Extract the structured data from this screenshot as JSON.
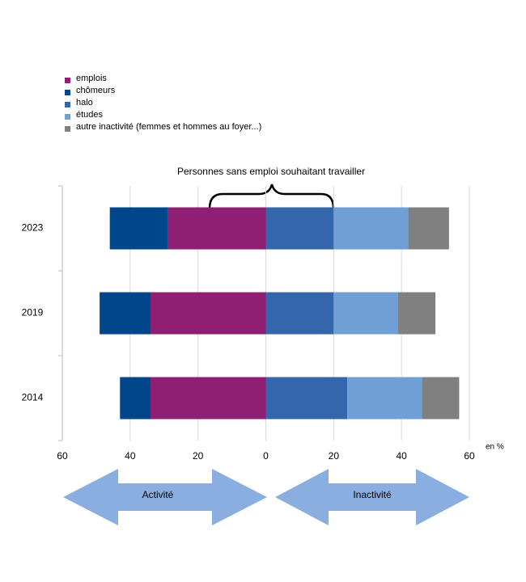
{
  "chart_data": {
    "type": "diverging-bar",
    "categories": [
      "2023",
      "2019",
      "2014"
    ],
    "series": [
      {
        "name": "emplois",
        "color": "#8e1f73",
        "values": [
          -29,
          -34,
          -34
        ]
      },
      {
        "name": "chômeurs",
        "color": "#00468b",
        "values": [
          -17,
          -15,
          -9
        ]
      },
      {
        "name": "halo",
        "color": "#3366aa",
        "values": [
          20,
          20,
          24
        ]
      },
      {
        "name": "études",
        "color": "#6f9fd4",
        "values": [
          22,
          19,
          22
        ]
      },
      {
        "name": "autre inactivité (femmes et hommes au foyer...)",
        "color": "#808080",
        "values": [
          12,
          11,
          11
        ]
      }
    ],
    "xlim": [
      -60,
      60
    ],
    "xticks": [
      {
        "value": -60,
        "label": "60"
      },
      {
        "value": -40,
        "label": "40"
      },
      {
        "value": -20,
        "label": "20"
      },
      0,
      20,
      40,
      60
    ],
    "grid": true,
    "annotations": [
      "Personnes sans emploi souhaitant travailler",
      "en %",
      "Activité",
      "Inactivité"
    ]
  }
}
